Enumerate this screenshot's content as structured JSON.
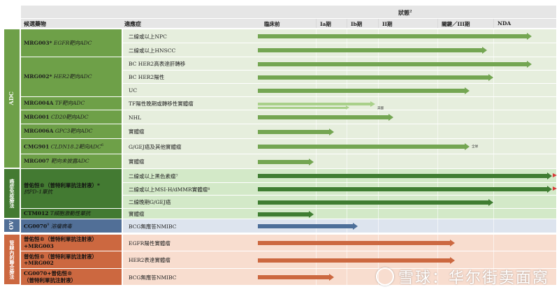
{
  "header": {
    "candidate": "候選藥物",
    "indication": "適應症",
    "status": "狀態",
    "status_sup": "2",
    "phases": [
      "臨床前",
      "Ia期",
      "Ib期",
      "II期",
      "關鍵／III期",
      "NDA"
    ]
  },
  "groups": [
    {
      "key": "adc",
      "label": "ADC",
      "color": "#6ea048",
      "bg": "#e6eedd"
    },
    {
      "key": "io",
      "label": "癌症免疫療法",
      "color": "#437a32",
      "bg": "#d3e9c8"
    },
    {
      "key": "ov",
      "label": "OV",
      "color": "#516f97",
      "bg": "#dde4ee"
    },
    {
      "key": "combo",
      "label": "管線內的聯合療法",
      "color": "#cc6840",
      "bg": "#f8ddcf"
    }
  ],
  "drugs": [
    {
      "code": "MRG003*",
      "target": "EGFR靶向ADC",
      "color": "#6ea048"
    },
    {
      "code": "MRG002*",
      "target": "HER2靶向ADC",
      "color": "#6ea048"
    },
    {
      "code": "MRG004A",
      "target": "TF靶向ADC",
      "color": "#6ea048"
    },
    {
      "code": "MRG001",
      "target": "CD20靶向ADC",
      "color": "#6ea048"
    },
    {
      "code": "MRG006A",
      "target": "GPC3靶向ADC",
      "color": "#6ea048"
    },
    {
      "code": "CMG901",
      "target": "CLDN18.2靶向ADC",
      "sup": "6",
      "color": "#6ea048"
    },
    {
      "code": "MRG007",
      "target": "靶向未披露ADC",
      "color": "#6ea048"
    },
    {
      "code": "普佑恒®（普特利單抗注射液）*",
      "target": "抗PD-1單抗",
      "color": "#437a32"
    },
    {
      "code": "CTM012",
      "target": "T細胞激動性單抗",
      "color": "#437a32"
    },
    {
      "code": "CG0070",
      "sup": "9",
      "target": "溶瘤病毒",
      "color": "#516f97"
    },
    {
      "code": "普佑恒®（普特利單抗注射液）",
      "code2": "+MRG003",
      "color": "#cc6840"
    },
    {
      "code": "普佑恒®（普特利單抗注射液）",
      "code2": "+MRG002",
      "color": "#cc6840"
    },
    {
      "code": "CG0070+普佑恒®",
      "code2": "（普特利單抗注射液）",
      "color": "#cc6840"
    }
  ],
  "rows": [
    {
      "indication": "二線或以上NPC",
      "progress": 0.93,
      "color": "#74a652"
    },
    {
      "indication": "二線或以上HNSCC",
      "progress": 0.78,
      "color": "#74a652"
    },
    {
      "indication": "BC HER2高表達肝轉移",
      "progress": 0.93,
      "color": "#74a652"
    },
    {
      "indication": "BC HER2陽性",
      "progress": 0.8,
      "color": "#74a652"
    },
    {
      "indication": "UC",
      "progress": 0.72,
      "color": "#74a652"
    },
    {
      "indication": "TF陽性晚期或轉移性實體瘤",
      "progress": 0.4,
      "color": "#a9d08a",
      "note": "美國"
    },
    {
      "indication": "NHL",
      "progress": 0.46,
      "color": "#74a652"
    },
    {
      "indication": "實體瘤",
      "progress": 0.26,
      "color": "#74a652"
    },
    {
      "indication": "G/GEJ癌及其他實體瘤",
      "progress": 0.72,
      "color": "#74a652",
      "note": "全球"
    },
    {
      "indication": "實體瘤",
      "progress": 0.19,
      "color": "#74a652"
    },
    {
      "indication": "二線或以上黑色素瘤",
      "sup": "7",
      "progress": 1.0,
      "color": "#3f7d32"
    },
    {
      "indication": "二線或以上MSI-H/dMMR實體瘤",
      "sup": "8",
      "progress": 1.0,
      "color": "#3f7d32"
    },
    {
      "indication": "二線晚期G/GEJ癌",
      "progress": 0.8,
      "color": "#3f7d32"
    },
    {
      "indication": "實體瘤",
      "progress": 0.19,
      "color": "#3f7d32"
    },
    {
      "indication": "BCG無應答NMIBC",
      "progress": 0.34,
      "color": "#4d6f99"
    },
    {
      "indication": "EGFR陽性實體瘤",
      "progress": 0.67,
      "color": "#cc6840"
    },
    {
      "indication": "HER2表達實體瘤",
      "progress": 0.67,
      "color": "#cc6840"
    },
    {
      "indication": "BCG無應答NMIBC",
      "progress": 0.26,
      "color": "#cc6840"
    }
  ],
  "watermark": "雪球：华尔街卖面窝"
}
